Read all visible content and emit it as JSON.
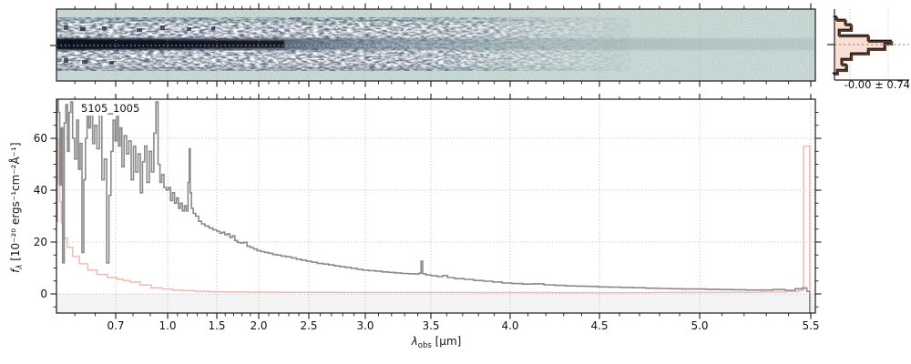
{
  "figure": {
    "kind": "astronomical spectrum quick-look figure",
    "background": "#ffffff"
  },
  "panels": {
    "spec2d": {
      "description": "2D rectified spectrum strip with dark source trace and dotted trace centerline",
      "colors": {
        "background_teal": "#cfdfdb",
        "trace_dark": "#0d1119",
        "band_white": "#ffffff",
        "centerline": "#c4c4c4",
        "gridline": "#a8a8a8"
      }
    },
    "profile": {
      "description": "spatial profile histogram (rotated), pink filled steps with dark outline",
      "stats_label": "-0.00 ± 0.74",
      "colors": {
        "fill": "#fcdccf",
        "outline_brown": "#5d3a28",
        "outline_black": "#1a1a1a",
        "center_dash": "#888888"
      }
    },
    "spec1d": {
      "source_label": "5105_1005",
      "xlabel": {
        "symbol": "λ",
        "sub": "obs",
        "unit": " [μm]"
      },
      "ylabel": {
        "symbol": "f",
        "sub": "λ",
        "unit": " [10⁻²⁰ ergs⁻¹cm⁻²Å⁻¹]"
      },
      "colors": {
        "flux": "#8a8a8a",
        "uncertainty": "#f5b8b4",
        "negative_band": "#f4f4f4",
        "gridline": "#b0b0b0",
        "spine": "#1a1a1a"
      }
    }
  },
  "chart_data": [
    {
      "id": "spec1d",
      "type": "line",
      "title": "5105_1005",
      "xlabel": "lambda_obs [micron]",
      "ylabel": "f_lambda [1e-20 ergs^-1 cm^-2 A^-1]",
      "x_scale": "nonlinear (NIRSpec prism dispersion, linear in detector pixel)",
      "xlim": [
        0.555,
        5.52
      ],
      "ylim": [
        -7.4,
        74.7
      ],
      "xticks": [
        0.7,
        1.0,
        1.5,
        2.0,
        2.5,
        3.0,
        3.5,
        4.0,
        4.5,
        5.0,
        5.5
      ],
      "xtick_labels": [
        "0.7",
        "1.0",
        "1.5",
        "2.0",
        "2.5",
        "3.0",
        "3.5",
        "4.0",
        "4.5",
        "5.0",
        "5.5"
      ],
      "yticks": [
        0,
        20,
        40,
        60
      ],
      "ytick_labels": [
        "0",
        "20",
        "40",
        "60"
      ],
      "grid": "dotted, both axes",
      "legend": "none",
      "series": [
        {
          "name": "flux",
          "style": "steps-mid",
          "color": "#8a8a8a",
          "points": [
            [
              0.555,
              28
            ],
            [
              0.558,
              75
            ],
            [
              0.561,
              70
            ],
            [
              0.565,
              42
            ],
            [
              0.568,
              64
            ],
            [
              0.572,
              12
            ],
            [
              0.576,
              66
            ],
            [
              0.58,
              73
            ],
            [
              0.584,
              55
            ],
            [
              0.588,
              70
            ],
            [
              0.592,
              74
            ],
            [
              0.597,
              60
            ],
            [
              0.602,
              52
            ],
            [
              0.607,
              67
            ],
            [
              0.611,
              48
            ],
            [
              0.615,
              58
            ],
            [
              0.62,
              16
            ],
            [
              0.624,
              44
            ],
            [
              0.628,
              60
            ],
            [
              0.632,
              70
            ],
            [
              0.636,
              64
            ],
            [
              0.641,
              73
            ],
            [
              0.646,
              58
            ],
            [
              0.651,
              65
            ],
            [
              0.657,
              56
            ],
            [
              0.663,
              70
            ],
            [
              0.669,
              44
            ],
            [
              0.675,
              52
            ],
            [
              0.681,
              12
            ],
            [
              0.686,
              38
            ],
            [
              0.691,
              55
            ],
            [
              0.696,
              67
            ],
            [
              0.701,
              59
            ],
            [
              0.711,
              72
            ],
            [
              0.721,
              57
            ],
            [
              0.731,
              64
            ],
            [
              0.741,
              49
            ],
            [
              0.756,
              61
            ],
            [
              0.769,
              54
            ],
            [
              0.783,
              59
            ],
            [
              0.796,
              44
            ],
            [
              0.809,
              57
            ],
            [
              0.822,
              47
            ],
            [
              0.836,
              54
            ],
            [
              0.848,
              39
            ],
            [
              0.861,
              51
            ],
            [
              0.874,
              57
            ],
            [
              0.887,
              43
            ],
            [
              0.901,
              55
            ],
            [
              0.914,
              47
            ],
            [
              0.927,
              62
            ],
            [
              0.938,
              74
            ],
            [
              0.951,
              50
            ],
            [
              0.961,
              43
            ],
            [
              0.972,
              46
            ],
            [
              0.986,
              41
            ],
            [
              1.0,
              40
            ],
            [
              1.02,
              41
            ],
            [
              1.04,
              36
            ],
            [
              1.06,
              39
            ],
            [
              1.08,
              35
            ],
            [
              1.1,
              37
            ],
            [
              1.12,
              33
            ],
            [
              1.14,
              35
            ],
            [
              1.16,
              32
            ],
            [
              1.18,
              34
            ],
            [
              1.2,
              32
            ],
            [
              1.215,
              43
            ],
            [
              1.225,
              56
            ],
            [
              1.235,
              39
            ],
            [
              1.25,
              33
            ],
            [
              1.27,
              31
            ],
            [
              1.3,
              30
            ],
            [
              1.33,
              28
            ],
            [
              1.36,
              27
            ],
            [
              1.4,
              26.2
            ],
            [
              1.44,
              25.4
            ],
            [
              1.48,
              24.7
            ],
            [
              1.52,
              24.2
            ],
            [
              1.55,
              23.4
            ],
            [
              1.58,
              23.8
            ],
            [
              1.61,
              22.8
            ],
            [
              1.64,
              23.2
            ],
            [
              1.67,
              21.8
            ],
            [
              1.7,
              22.4
            ],
            [
              1.73,
              20.6
            ],
            [
              1.76,
              19.9
            ],
            [
              1.8,
              19.6
            ],
            [
              1.84,
              19.9
            ],
            [
              1.88,
              18.4
            ],
            [
              1.92,
              17.9
            ],
            [
              1.96,
              17.3
            ],
            [
              2.0,
              16.7
            ],
            [
              2.04,
              16.3
            ],
            [
              2.08,
              16.0
            ],
            [
              2.12,
              15.7
            ],
            [
              2.16,
              15.2
            ],
            [
              2.2,
              15.0
            ],
            [
              2.25,
              14.6
            ],
            [
              2.3,
              14.3
            ],
            [
              2.35,
              13.9
            ],
            [
              2.4,
              13.4
            ],
            [
              2.45,
              13.0
            ],
            [
              2.5,
              12.6
            ],
            [
              2.55,
              12.2
            ],
            [
              2.6,
              11.8
            ],
            [
              2.65,
              11.5
            ],
            [
              2.7,
              11.2
            ],
            [
              2.75,
              10.8
            ],
            [
              2.8,
              10.5
            ],
            [
              2.85,
              10.2
            ],
            [
              2.9,
              9.9
            ],
            [
              2.95,
              9.5
            ],
            [
              3.0,
              9.2
            ],
            [
              3.05,
              9.0
            ],
            [
              3.1,
              8.8
            ],
            [
              3.15,
              8.5
            ],
            [
              3.2,
              8.3
            ],
            [
              3.25,
              8.1
            ],
            [
              3.3,
              7.9
            ],
            [
              3.35,
              7.8
            ],
            [
              3.4,
              7.7
            ],
            [
              3.42,
              8.0
            ],
            [
              3.43,
              12.6
            ],
            [
              3.445,
              7.8
            ],
            [
              3.48,
              7.3
            ],
            [
              3.52,
              7.0
            ],
            [
              3.56,
              6.7
            ],
            [
              3.59,
              7.1
            ],
            [
              3.62,
              6.3
            ],
            [
              3.68,
              5.9
            ],
            [
              3.74,
              5.6
            ],
            [
              3.8,
              5.2
            ],
            [
              3.86,
              4.9
            ],
            [
              3.92,
              4.6
            ],
            [
              3.98,
              4.2
            ],
            [
              4.04,
              4.0
            ],
            [
              4.1,
              3.8
            ],
            [
              4.16,
              3.9
            ],
            [
              4.22,
              3.5
            ],
            [
              4.28,
              3.3
            ],
            [
              4.34,
              3.1
            ],
            [
              4.4,
              3.0
            ],
            [
              4.46,
              2.9
            ],
            [
              4.52,
              2.7
            ],
            [
              4.58,
              2.6
            ],
            [
              4.64,
              2.5
            ],
            [
              4.7,
              2.4
            ],
            [
              4.76,
              2.2
            ],
            [
              4.82,
              2.1
            ],
            [
              4.88,
              2.0
            ],
            [
              4.94,
              1.9
            ],
            [
              5.0,
              1.9
            ],
            [
              5.06,
              1.8
            ],
            [
              5.12,
              1.7
            ],
            [
              5.18,
              1.6
            ],
            [
              5.24,
              1.5
            ],
            [
              5.3,
              1.5
            ],
            [
              5.36,
              1.7
            ],
            [
              5.41,
              1.4
            ],
            [
              5.45,
              2.0
            ],
            [
              5.475,
              2.3
            ],
            [
              5.49,
              1.0
            ],
            [
              5.5,
              -7.2
            ]
          ]
        },
        {
          "name": "uncertainty",
          "style": "steps-mid",
          "color": "#f5b8b4",
          "points": [
            [
              0.555,
              80
            ],
            [
              0.558,
              60
            ],
            [
              0.561,
              42.6
            ],
            [
              0.565,
              35.5
            ],
            [
              0.568,
              27.4
            ],
            [
              0.576,
              21.5
            ],
            [
              0.587,
              18
            ],
            [
              0.602,
              14.5
            ],
            [
              0.62,
              11.6
            ],
            [
              0.643,
              9.2
            ],
            [
              0.665,
              7.5
            ],
            [
              0.695,
              6.3
            ],
            [
              0.73,
              5.7
            ],
            [
              0.757,
              5.2
            ],
            [
              0.81,
              4.6
            ],
            [
              0.873,
              3.4
            ],
            [
              0.937,
              2.4
            ],
            [
              1.0,
              1.9
            ],
            [
              1.1,
              1.5
            ],
            [
              1.2,
              1.25
            ],
            [
              1.35,
              1.0
            ],
            [
              1.5,
              0.85
            ],
            [
              1.7,
              0.75
            ],
            [
              2.0,
              0.68
            ],
            [
              2.5,
              0.6
            ],
            [
              3.0,
              0.57
            ],
            [
              3.5,
              0.55
            ],
            [
              4.0,
              0.52
            ],
            [
              4.5,
              0.5
            ],
            [
              5.0,
              0.55
            ],
            [
              5.2,
              0.62
            ],
            [
              5.35,
              0.72
            ],
            [
              5.43,
              0.9
            ],
            [
              5.46,
              1.3
            ],
            [
              5.475,
              57
            ],
            [
              5.49,
              57
            ],
            [
              5.5,
              2
            ]
          ]
        }
      ]
    },
    {
      "id": "profile_histogram",
      "type": "bar",
      "orientation": "horizontal",
      "annotation": "-0.00 ± 0.74",
      "note": "spatial profile along cross-dispersion axis; bins given as [y_fraction, width_fraction]",
      "bins": [
        [
          0.1,
          0.04
        ],
        [
          0.145,
          0.16
        ],
        [
          0.21,
          0.24
        ],
        [
          0.29,
          0.075
        ],
        [
          0.37,
          0.475
        ],
        [
          0.447,
          0.79
        ],
        [
          0.487,
          0.7
        ],
        [
          0.566,
          0.475
        ],
        [
          0.63,
          0.24
        ],
        [
          0.71,
          0.11
        ],
        [
          0.79,
          0.175
        ],
        [
          0.87,
          0.05
        ],
        [
          0.92,
          0.0
        ]
      ]
    },
    {
      "id": "spec2d",
      "type": "heatmap",
      "note": "2D spectrum: pale teal background, white noisy band, dark trace centered vertically, strongest at blue end, dotted centerline; shares wavelength axis with spec1d",
      "x_range": [
        0.555,
        5.52
      ]
    }
  ]
}
